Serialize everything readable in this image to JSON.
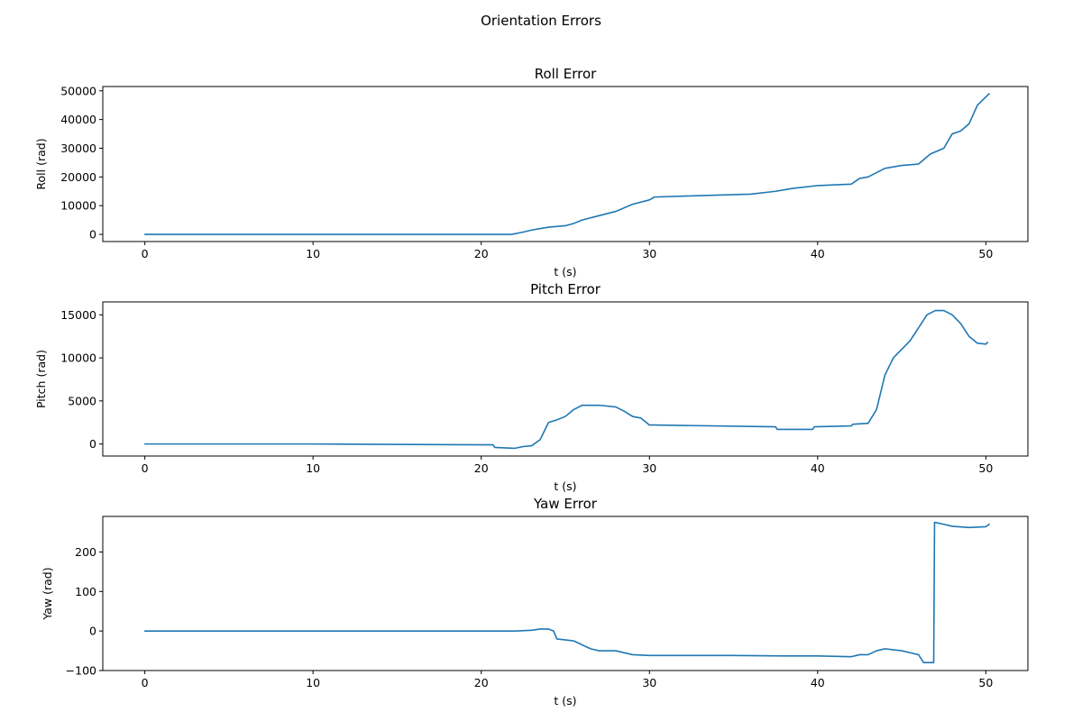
{
  "figure": {
    "suptitle": "Orientation Errors"
  },
  "colors": {
    "series": "#1f77b4",
    "axes": "#000000",
    "background": "#ffffff"
  },
  "chart_data": [
    {
      "type": "line",
      "title": "Roll Error",
      "xlabel": "t (s)",
      "ylabel": "Roll (rad)",
      "xlim": [
        -2.5,
        52.5
      ],
      "ylim": [
        -2500,
        51500
      ],
      "xticks": [
        0,
        10,
        20,
        30,
        40,
        50
      ],
      "xtick_labels": [
        "0",
        "10",
        "20",
        "30",
        "40",
        "50"
      ],
      "yticks": [
        0,
        10000,
        20000,
        30000,
        40000,
        50000
      ],
      "ytick_labels": [
        "0",
        "10000",
        "20000",
        "30000",
        "40000",
        "50000"
      ],
      "grid": false,
      "series": [
        {
          "x": [
            0,
            10,
            20,
            21.8,
            22.5,
            23,
            24,
            25,
            25.5,
            26,
            27,
            28,
            29,
            30,
            30.3,
            33,
            36,
            37.5,
            38.5,
            40,
            42,
            42.5,
            43,
            44,
            45,
            46,
            46.7,
            47.5,
            48,
            48.5,
            49,
            49.5,
            50.2
          ],
          "y": [
            0,
            0,
            0,
            0,
            800,
            1500,
            2500,
            3000,
            3800,
            5000,
            6500,
            8000,
            10500,
            12000,
            13000,
            13500,
            14000,
            15000,
            16000,
            17000,
            17500,
            19500,
            20000,
            23000,
            24000,
            24500,
            28000,
            30000,
            35000,
            36000,
            38500,
            45000,
            49000
          ]
        }
      ]
    },
    {
      "type": "line",
      "title": "Pitch Error",
      "xlabel": "t (s)",
      "ylabel": "Pitch (rad)",
      "xlim": [
        -2.5,
        52.5
      ],
      "ylim": [
        -1400,
        16500
      ],
      "xticks": [
        0,
        10,
        20,
        30,
        40,
        50
      ],
      "xtick_labels": [
        "0",
        "10",
        "20",
        "30",
        "40",
        "50"
      ],
      "yticks": [
        0,
        5000,
        10000,
        15000
      ],
      "ytick_labels": [
        "0",
        "5000",
        "10000",
        "15000"
      ],
      "grid": false,
      "series": [
        {
          "x": [
            0,
            10,
            20.7,
            20.8,
            22,
            22.5,
            23,
            23.5,
            24,
            24.5,
            25,
            25.5,
            26,
            27,
            28,
            28.5,
            29,
            29.5,
            30,
            30.3,
            37.5,
            37.6,
            39.7,
            39.8,
            42,
            42.1,
            43,
            43.5,
            44,
            44.5,
            45,
            45.5,
            46,
            46.5,
            47,
            47.5,
            48,
            48.5,
            49,
            49.5,
            50,
            50.1
          ],
          "y": [
            0,
            0,
            -100,
            -400,
            -500,
            -300,
            -200,
            500,
            2500,
            2800,
            3200,
            4000,
            4500,
            4500,
            4300,
            3800,
            3200,
            3000,
            2200,
            2200,
            2000,
            1700,
            1700,
            2000,
            2100,
            2300,
            2400,
            4000,
            8000,
            10000,
            11000,
            12000,
            13500,
            15000,
            15500,
            15500,
            15000,
            14000,
            12500,
            11700,
            11600,
            11800
          ]
        }
      ]
    },
    {
      "type": "line",
      "title": "Yaw Error",
      "xlabel": "t (s)",
      "ylabel": "Yaw (rad)",
      "xlim": [
        -2.5,
        52.5
      ],
      "ylim": [
        -100,
        290
      ],
      "xticks": [
        0,
        10,
        20,
        30,
        40,
        50
      ],
      "xtick_labels": [
        "0",
        "10",
        "20",
        "30",
        "40",
        "50"
      ],
      "yticks": [
        -100,
        0,
        100,
        200
      ],
      "ytick_labels": [
        "−100",
        "0",
        "100",
        "200"
      ],
      "grid": false,
      "series": [
        {
          "x": [
            0,
            10,
            20,
            22,
            23,
            23.5,
            24,
            24.3,
            24.5,
            25.5,
            26,
            26.5,
            27,
            28,
            29,
            30,
            35,
            38,
            40,
            42,
            42.5,
            43,
            43.5,
            44,
            45,
            45.5,
            46,
            46.3,
            46.9,
            46.95,
            47.5,
            48,
            49,
            50,
            50.2
          ],
          "y": [
            0,
            0,
            0,
            0,
            2,
            5,
            5,
            0,
            -20,
            -25,
            -35,
            -45,
            -50,
            -50,
            -60,
            -62,
            -62,
            -63,
            -63,
            -65,
            -60,
            -60,
            -50,
            -45,
            -50,
            -55,
            -60,
            -80,
            -80,
            275,
            270,
            265,
            262,
            264,
            270
          ]
        }
      ]
    }
  ]
}
